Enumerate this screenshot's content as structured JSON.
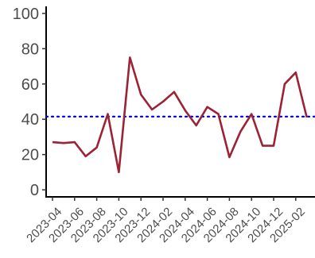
{
  "chart_data": {
    "type": "line",
    "title": "",
    "xlabel": "",
    "ylabel": "",
    "x_tick_labels": [
      "2023-04",
      "2023-06",
      "2023-08",
      "2023-10",
      "2023-12",
      "2024-02",
      "2024-04",
      "2024-06",
      "2024-08",
      "2024-10",
      "2024-12",
      "2025-02"
    ],
    "x": [
      "2023-04",
      "2023-05",
      "2023-06",
      "2023-07",
      "2023-08",
      "2023-09",
      "2023-10",
      "2023-11",
      "2023-12",
      "2024-01",
      "2024-02",
      "2024-03",
      "2024-04",
      "2024-05",
      "2024-06",
      "2024-07",
      "2024-08",
      "2024-09",
      "2024-10",
      "2024-11",
      "2024-12",
      "2025-01",
      "2025-02",
      "2025-03"
    ],
    "series": [
      {
        "values": [
          27,
          26.5,
          27,
          19,
          24,
          43,
          10,
          75,
          54,
          45.5,
          50,
          55.5,
          45,
          36.5,
          47,
          43,
          18.5,
          33,
          43,
          25,
          25,
          60,
          66.5,
          41
        ],
        "color": "#9b2335"
      }
    ],
    "reference_line": {
      "value": 41.5,
      "style": "dotted",
      "color": "#0000ee"
    },
    "y_ticks": [
      0,
      20,
      40,
      60,
      80,
      100
    ],
    "ylim": [
      -4,
      104
    ],
    "grid": false,
    "legend": "none"
  }
}
